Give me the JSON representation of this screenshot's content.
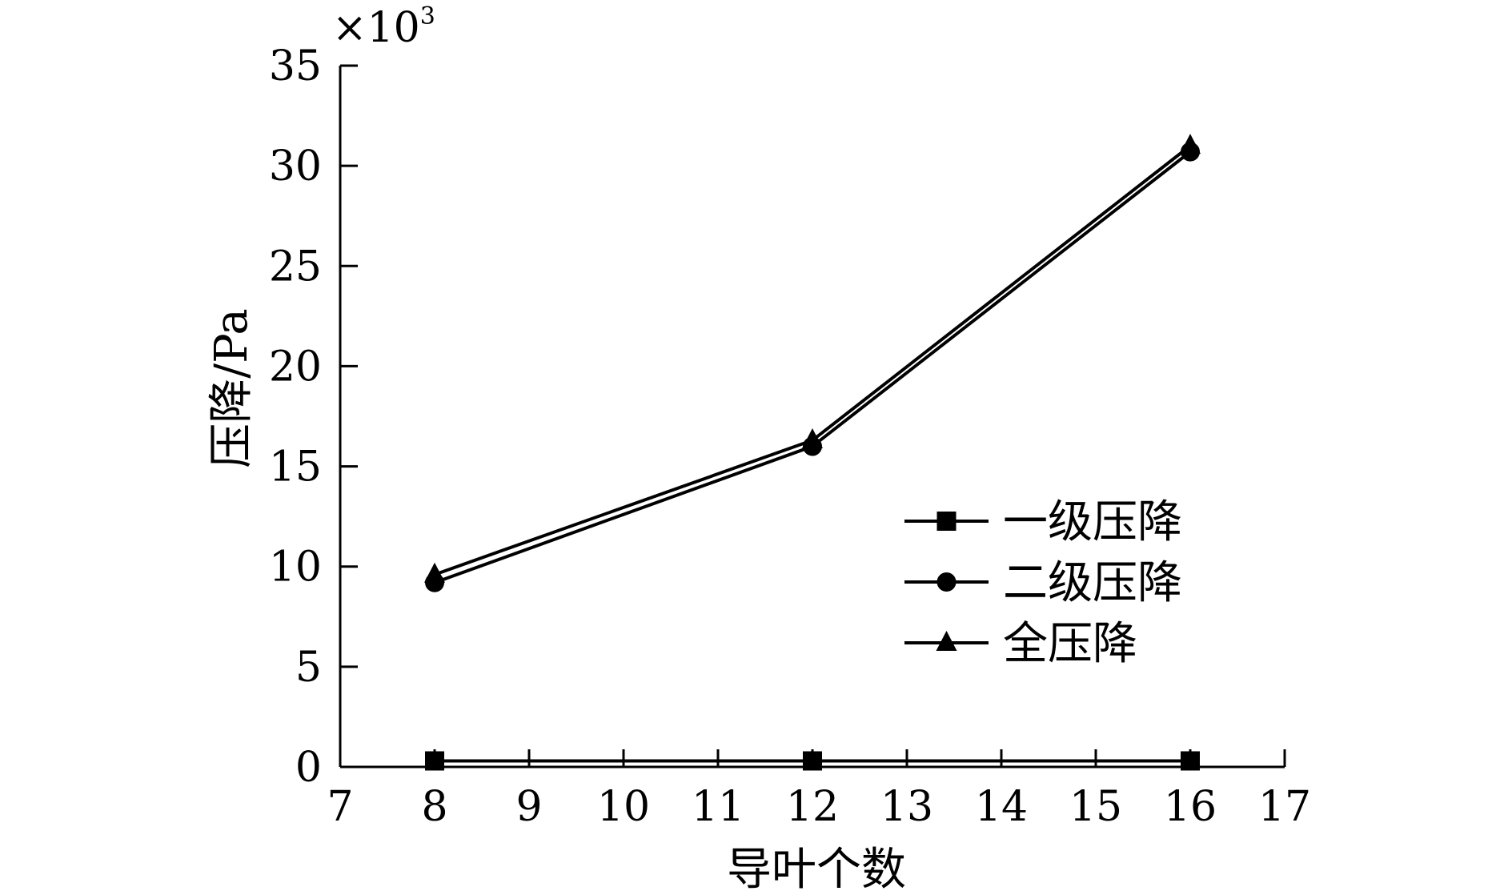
{
  "chart_data": {
    "type": "line",
    "title": "",
    "xlabel": "导叶个数",
    "ylabel": "压降/Pa",
    "y_multiplier_base": "×10",
    "y_multiplier_exp": "3",
    "xlim": [
      7,
      17
    ],
    "ylim": [
      0,
      35
    ],
    "x_ticks": [
      "7",
      "8",
      "9",
      "10",
      "11",
      "12",
      "13",
      "14",
      "15",
      "16",
      "17"
    ],
    "y_ticks": [
      "0",
      "5",
      "10",
      "15",
      "20",
      "25",
      "30",
      "35"
    ],
    "x": [
      8,
      12,
      16
    ],
    "series": [
      {
        "name": "一级压降",
        "marker": "square",
        "values": [
          0.3,
          0.3,
          0.3
        ]
      },
      {
        "name": "二级压降",
        "marker": "circle",
        "values": [
          9.2,
          16.0,
          30.7
        ]
      },
      {
        "name": "全压降",
        "marker": "triangle",
        "values": [
          9.6,
          16.3,
          31.0
        ]
      }
    ],
    "grid": false,
    "legend_position": "right",
    "colors": {
      "line": "#000000",
      "background": "#ffffff"
    }
  }
}
